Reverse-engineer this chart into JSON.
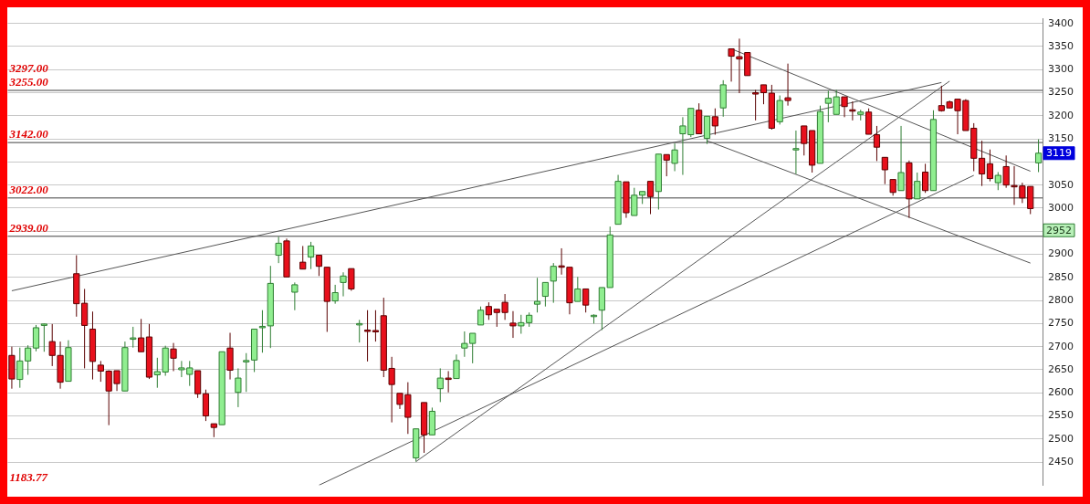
{
  "chart_data": {
    "type": "candlestick",
    "categories": [
      null,
      null,
      null,
      null,
      null,
      null,
      null,
      null,
      null,
      null,
      null,
      null,
      null,
      null,
      null,
      null,
      null,
      null,
      null,
      null,
      null,
      null,
      null,
      null,
      null,
      null,
      null,
      null,
      null,
      null,
      null,
      null,
      null,
      null,
      null,
      null,
      null,
      null,
      null,
      null,
      null,
      null,
      null,
      null,
      null,
      null,
      null,
      null,
      null,
      null,
      null,
      null,
      null,
      null,
      null,
      null,
      null,
      null,
      null,
      null,
      null,
      null,
      null,
      null,
      null,
      null,
      null,
      null,
      null,
      null,
      null,
      null,
      null,
      null,
      null,
      null,
      null,
      null,
      null,
      null,
      null,
      null,
      null,
      null,
      null,
      null,
      null,
      null,
      null,
      null,
      null,
      null,
      null,
      null,
      null,
      null,
      null,
      null,
      null,
      null,
      null,
      null,
      null,
      null,
      null,
      null,
      null,
      null,
      null,
      null,
      null,
      null,
      null,
      null,
      null,
      null,
      null,
      null,
      null,
      null,
      null,
      null,
      null,
      null,
      null,
      null,
      null,
      null
    ],
    "ohlc": [
      [
        2681,
        2700,
        2609,
        2630
      ],
      [
        2629,
        2698,
        2611,
        2669
      ],
      [
        2669,
        2703,
        2639,
        2697
      ],
      [
        2697,
        2747,
        2690,
        2741
      ],
      [
        2747,
        2750,
        2689,
        2749
      ],
      [
        2711,
        2749,
        2658,
        2681
      ],
      [
        2681,
        2711,
        2609,
        2623
      ],
      [
        2625,
        2714,
        2625,
        2698
      ],
      [
        2858,
        2898,
        2765,
        2793
      ],
      [
        2794,
        2825,
        2653,
        2746
      ],
      [
        2738,
        2776,
        2629,
        2668
      ],
      [
        2660,
        2669,
        2624,
        2647
      ],
      [
        2647,
        2649,
        2530,
        2604
      ],
      [
        2648,
        2648,
        2604,
        2620
      ],
      [
        2604,
        2711,
        2604,
        2698
      ],
      [
        2717,
        2743,
        2698,
        2719
      ],
      [
        2719,
        2760,
        2689,
        2689
      ],
      [
        2721,
        2749,
        2630,
        2634
      ],
      [
        2639,
        2676,
        2611,
        2646
      ],
      [
        2645,
        2702,
        2637,
        2697
      ],
      [
        2695,
        2708,
        2647,
        2675
      ],
      [
        2650,
        2669,
        2634,
        2654
      ],
      [
        2640,
        2669,
        2615,
        2654
      ],
      [
        2648,
        2648,
        2589,
        2598
      ],
      [
        2598,
        2607,
        2539,
        2550
      ],
      [
        2533,
        2533,
        2504,
        2525
      ],
      [
        2531,
        2689,
        2531,
        2689
      ],
      [
        2697,
        2730,
        2629,
        2649
      ],
      [
        2601,
        2653,
        2569,
        2632
      ],
      [
        2668,
        2686,
        2602,
        2670
      ],
      [
        2671,
        2738,
        2645,
        2738
      ],
      [
        2742,
        2779,
        2687,
        2744
      ],
      [
        2745,
        2875,
        2697,
        2837
      ],
      [
        2898,
        2938,
        2881,
        2924
      ],
      [
        2929,
        2934,
        2851,
        2851
      ],
      [
        2818,
        2839,
        2779,
        2834
      ],
      [
        2883,
        2918,
        2868,
        2868
      ],
      [
        2894,
        2927,
        2868,
        2918
      ],
      [
        2898,
        2898,
        2853,
        2874
      ],
      [
        2872,
        2872,
        2732,
        2798
      ],
      [
        2799,
        2834,
        2793,
        2817
      ],
      [
        2839,
        2861,
        2809,
        2853
      ],
      [
        2869,
        2869,
        2821,
        2825
      ],
      [
        2748,
        2758,
        2709,
        2750
      ],
      [
        2736,
        2779,
        2668,
        2733
      ],
      [
        2735,
        2779,
        2711,
        2732
      ],
      [
        2767,
        2806,
        2634,
        2649
      ],
      [
        2653,
        2678,
        2536,
        2618
      ],
      [
        2599,
        2599,
        2565,
        2575
      ],
      [
        2596,
        2623,
        2511,
        2547
      ],
      [
        2459,
        2522,
        2451,
        2522
      ],
      [
        2579,
        2579,
        2470,
        2509
      ],
      [
        2509,
        2568,
        2509,
        2560
      ],
      [
        2609,
        2653,
        2580,
        2632
      ],
      [
        2632,
        2647,
        2601,
        2629
      ],
      [
        2631,
        2683,
        2631,
        2670
      ],
      [
        2697,
        2733,
        2678,
        2707
      ],
      [
        2707,
        2729,
        2664,
        2729
      ],
      [
        2747,
        2787,
        2747,
        2779
      ],
      [
        2787,
        2796,
        2758,
        2769
      ],
      [
        2781,
        2781,
        2743,
        2774
      ],
      [
        2796,
        2814,
        2758,
        2774
      ],
      [
        2751,
        2777,
        2719,
        2745
      ],
      [
        2745,
        2769,
        2728,
        2752
      ],
      [
        2752,
        2774,
        2743,
        2768
      ],
      [
        2792,
        2849,
        2774,
        2798
      ],
      [
        2809,
        2839,
        2787,
        2839
      ],
      [
        2842,
        2881,
        2795,
        2874
      ],
      [
        2875,
        2913,
        2856,
        2872
      ],
      [
        2872,
        2872,
        2770,
        2795
      ],
      [
        2798,
        2851,
        2798,
        2825
      ],
      [
        2825,
        2825,
        2774,
        2790
      ],
      [
        2766,
        2770,
        2750,
        2768
      ],
      [
        2779,
        2828,
        2736,
        2828
      ],
      [
        2828,
        2960,
        2828,
        2942
      ],
      [
        2965,
        3072,
        2965,
        3058
      ],
      [
        3057,
        3057,
        2979,
        2990
      ],
      [
        2984,
        3044,
        2984,
        3028
      ],
      [
        3028,
        3036,
        3009,
        3036
      ],
      [
        3058,
        3058,
        2987,
        3025
      ],
      [
        3036,
        3117,
        2997,
        3117
      ],
      [
        3116,
        3116,
        3069,
        3104
      ],
      [
        3097,
        3140,
        3080,
        3126
      ],
      [
        3161,
        3197,
        3072,
        3178
      ],
      [
        3159,
        3216,
        3154,
        3216
      ],
      [
        3212,
        3227,
        3161,
        3161
      ],
      [
        3151,
        3199,
        3139,
        3199
      ],
      [
        3198,
        3216,
        3159,
        3178
      ],
      [
        3217,
        3277,
        3198,
        3267
      ],
      [
        3345,
        3345,
        3274,
        3329
      ],
      [
        3328,
        3367,
        3249,
        3323
      ],
      [
        3337,
        3337,
        3287,
        3287
      ],
      [
        3250,
        3256,
        3190,
        3247
      ],
      [
        3267,
        3267,
        3225,
        3250
      ],
      [
        3249,
        3267,
        3170,
        3173
      ],
      [
        3187,
        3244,
        3181,
        3233
      ],
      [
        3239,
        3313,
        3222,
        3233
      ],
      [
        3126,
        3168,
        3074,
        3129
      ],
      [
        3178,
        3178,
        3114,
        3140
      ],
      [
        3168,
        3168,
        3077,
        3093
      ],
      [
        3097,
        3222,
        3097,
        3209
      ],
      [
        3227,
        3254,
        3186,
        3238
      ],
      [
        3203,
        3256,
        3203,
        3241
      ],
      [
        3241,
        3241,
        3197,
        3220
      ],
      [
        3213,
        3231,
        3190,
        3210
      ],
      [
        3203,
        3213,
        3190,
        3208
      ],
      [
        3208,
        3216,
        3160,
        3160
      ],
      [
        3159,
        3178,
        3102,
        3132
      ],
      [
        3110,
        3110,
        3052,
        3083
      ],
      [
        3062,
        3062,
        3027,
        3034
      ],
      [
        3038,
        3178,
        3038,
        3077
      ],
      [
        3098,
        3103,
        2979,
        3020
      ],
      [
        3020,
        3077,
        3020,
        3058
      ],
      [
        3078,
        3096,
        3033,
        3038
      ],
      [
        3038,
        3212,
        3038,
        3192
      ],
      [
        3222,
        3265,
        3209,
        3211
      ],
      [
        3230,
        3233,
        3216,
        3217
      ],
      [
        3236,
        3236,
        3160,
        3211
      ],
      [
        3233,
        3236,
        3168,
        3168
      ],
      [
        3173,
        3184,
        3080,
        3108
      ],
      [
        3108,
        3146,
        3048,
        3074
      ],
      [
        3096,
        3127,
        3058,
        3064
      ],
      [
        3055,
        3078,
        3039,
        3071
      ],
      [
        3090,
        3114,
        3044,
        3050
      ],
      [
        3049,
        3091,
        3007,
        3047
      ],
      [
        3048,
        3055,
        3011,
        3022
      ],
      [
        3047,
        3047,
        2987,
        2999
      ],
      [
        3098,
        3149,
        3078,
        3119
      ]
    ],
    "series": [
      {
        "type": "line",
        "color": "#555555",
        "values": [
          2821,
          null,
          null,
          null,
          null,
          null,
          null,
          null,
          null,
          null,
          null,
          null,
          null,
          null,
          null,
          null,
          null,
          null,
          null,
          null,
          null,
          null,
          null,
          null,
          null,
          null,
          null,
          null,
          null,
          null,
          null,
          null,
          null,
          null,
          null,
          null,
          null,
          null,
          null,
          null,
          null,
          null,
          null,
          null,
          null,
          null,
          null,
          null,
          null,
          null,
          null,
          null,
          null,
          null,
          null,
          null,
          null,
          null,
          null,
          null,
          null,
          null,
          null,
          null,
          null,
          null,
          null,
          null,
          null,
          null,
          null,
          null,
          null,
          null,
          null,
          null,
          null,
          null,
          null,
          null,
          null,
          null,
          null,
          null,
          null,
          null,
          null,
          null,
          null,
          null,
          null,
          null,
          null,
          null,
          null,
          null,
          null,
          null,
          null,
          null,
          null,
          null,
          null,
          null,
          null,
          null,
          null,
          null,
          null,
          null,
          null,
          null,
          null,
          null,
          null,
          3272,
          null,
          null,
          null,
          null,
          null,
          null,
          null,
          null,
          null,
          null,
          null,
          null
        ]
      },
      {
        "type": "line",
        "color": "#555555",
        "values": [
          null,
          null,
          null,
          null,
          null,
          null,
          null,
          null,
          null,
          null,
          null,
          null,
          null,
          null,
          null,
          null,
          null,
          null,
          null,
          null,
          null,
          null,
          null,
          null,
          null,
          null,
          null,
          null,
          null,
          null,
          null,
          null,
          null,
          null,
          null,
          null,
          null,
          null,
          null,
          null,
          null,
          null,
          null,
          null,
          null,
          null,
          null,
          null,
          null,
          null,
          2451,
          null,
          null,
          null,
          null,
          null,
          null,
          null,
          null,
          null,
          null,
          null,
          null,
          null,
          null,
          null,
          null,
          null,
          null,
          null,
          null,
          null,
          null,
          null,
          null,
          null,
          null,
          null,
          null,
          null,
          null,
          null,
          null,
          null,
          null,
          null,
          null,
          null,
          null,
          null,
          null,
          null,
          null,
          null,
          null,
          null,
          null,
          null,
          null,
          null,
          null,
          null,
          null,
          null,
          null,
          null,
          null,
          null,
          null,
          null,
          null,
          null,
          null,
          null,
          null,
          null,
          3275,
          null,
          null,
          null,
          null,
          null,
          null,
          null,
          null,
          null,
          null,
          null
        ]
      },
      {
        "type": "line",
        "color": "#555555",
        "values": [
          null,
          null,
          null,
          null,
          null,
          null,
          null,
          null,
          null,
          null,
          null,
          null,
          null,
          null,
          null,
          null,
          null,
          null,
          null,
          null,
          null,
          null,
          null,
          null,
          null,
          null,
          null,
          null,
          null,
          null,
          null,
          null,
          null,
          null,
          null,
          null,
          null,
          null,
          2400,
          null,
          null,
          null,
          null,
          null,
          null,
          null,
          null,
          null,
          null,
          null,
          null,
          null,
          null,
          null,
          null,
          null,
          null,
          null,
          null,
          null,
          null,
          null,
          null,
          null,
          null,
          null,
          null,
          null,
          null,
          null,
          null,
          null,
          null,
          null,
          null,
          null,
          null,
          null,
          null,
          null,
          null,
          null,
          null,
          null,
          null,
          null,
          null,
          null,
          null,
          null,
          null,
          null,
          null,
          null,
          null,
          null,
          null,
          null,
          null,
          null,
          null,
          null,
          null,
          null,
          null,
          null,
          null,
          null,
          null,
          null,
          null,
          null,
          null,
          null,
          null,
          null,
          null,
          null,
          null,
          3071,
          null,
          null,
          null,
          null,
          null,
          null,
          null,
          null
        ]
      },
      {
        "type": "line",
        "color": "#555555",
        "values": [
          null,
          null,
          null,
          null,
          null,
          null,
          null,
          null,
          null,
          null,
          null,
          null,
          null,
          null,
          null,
          null,
          null,
          null,
          null,
          null,
          null,
          null,
          null,
          null,
          null,
          null,
          null,
          null,
          null,
          null,
          null,
          null,
          null,
          null,
          null,
          null,
          null,
          null,
          null,
          null,
          null,
          null,
          null,
          null,
          null,
          null,
          null,
          null,
          null,
          null,
          null,
          null,
          null,
          null,
          null,
          null,
          null,
          null,
          null,
          null,
          null,
          null,
          null,
          null,
          null,
          null,
          null,
          null,
          null,
          null,
          null,
          null,
          null,
          null,
          null,
          null,
          null,
          null,
          null,
          null,
          null,
          null,
          null,
          null,
          null,
          null,
          3146,
          null,
          null,
          null,
          null,
          null,
          null,
          null,
          null,
          null,
          null,
          null,
          null,
          null,
          null,
          null,
          null,
          null,
          null,
          null,
          null,
          null,
          null,
          null,
          null,
          null,
          null,
          null,
          null,
          null,
          null,
          null,
          null,
          null,
          null,
          null,
          null,
          null,
          null,
          null,
          2881,
          null
        ]
      },
      {
        "type": "line",
        "color": "#555555",
        "values": [
          null,
          null,
          null,
          null,
          null,
          null,
          null,
          null,
          null,
          null,
          null,
          null,
          null,
          null,
          null,
          null,
          null,
          null,
          null,
          null,
          null,
          null,
          null,
          null,
          null,
          null,
          null,
          null,
          null,
          null,
          null,
          null,
          null,
          null,
          null,
          null,
          null,
          null,
          null,
          null,
          null,
          null,
          null,
          null,
          null,
          null,
          null,
          null,
          null,
          null,
          null,
          null,
          null,
          null,
          null,
          null,
          null,
          null,
          null,
          null,
          null,
          null,
          null,
          null,
          null,
          null,
          null,
          null,
          null,
          null,
          null,
          null,
          null,
          null,
          null,
          null,
          null,
          null,
          null,
          null,
          null,
          null,
          null,
          null,
          null,
          null,
          null,
          null,
          null,
          3345,
          null,
          null,
          null,
          null,
          null,
          null,
          null,
          null,
          null,
          null,
          null,
          null,
          null,
          null,
          null,
          null,
          null,
          null,
          null,
          null,
          null,
          null,
          null,
          null,
          null,
          null,
          null,
          null,
          null,
          null,
          null,
          null,
          null,
          null,
          null,
          null,
          3080,
          null
        ]
      }
    ],
    "ylim": [
      2400,
      3410
    ],
    "yticks": [
      2450,
      2500,
      2550,
      2600,
      2650,
      2700,
      2750,
      2800,
      2850,
      2900,
      {
        "value": 2950,
        "label": null
      },
      3000,
      3050,
      {
        "value": 3100,
        "label": null
      },
      3150,
      3200,
      3250,
      3300,
      3350,
      3400
    ],
    "grid": "y",
    "tick_labels": "y",
    "ref_lines": [
      {
        "axis": "y",
        "value": 3255,
        "label": "3255.00",
        "color": "#404040"
      },
      {
        "axis": "y",
        "value": 3142,
        "label": "3142.00",
        "color": "#404040"
      },
      {
        "axis": "y",
        "value": 3022,
        "label": "3022.00",
        "color": "#404040"
      },
      {
        "axis": "y",
        "value": 2939,
        "label": "2939.00",
        "color": "#404040"
      }
    ],
    "annotations": [
      {
        "text": "3119",
        "y": 3119
      },
      {
        "text": "2952",
        "y": 2952
      },
      "3297.00",
      "1183.77"
    ]
  }
}
